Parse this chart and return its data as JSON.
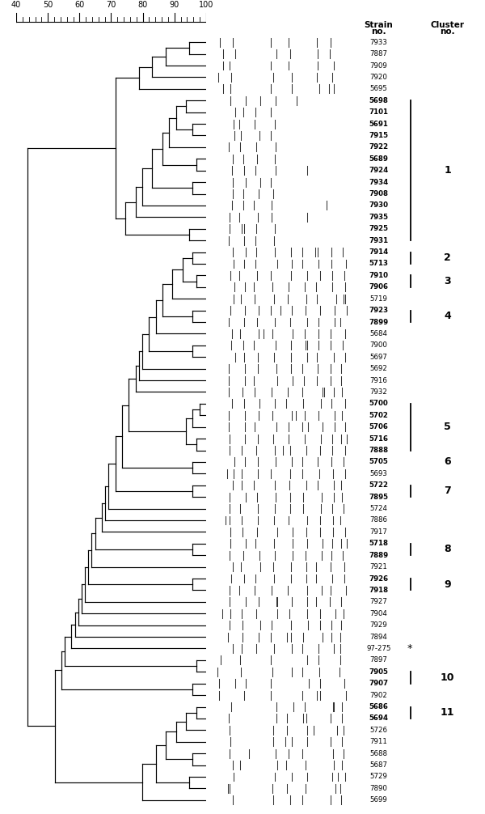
{
  "strains": [
    "7933",
    "7887",
    "7909",
    "7920",
    "5695",
    "5698",
    "7101",
    "5691",
    "7915",
    "7922",
    "5689",
    "7924",
    "7934",
    "7908",
    "7930",
    "7935",
    "7925",
    "7931",
    "7914",
    "5713",
    "7910",
    "7906",
    "5719",
    "7923",
    "7899",
    "5684",
    "7900",
    "5697",
    "5692",
    "7916",
    "7932",
    "5700",
    "5702",
    "5706",
    "5716",
    "7888",
    "5705",
    "5693",
    "5722",
    "7895",
    "5724",
    "7886",
    "7917",
    "5718",
    "7889",
    "7921",
    "7926",
    "7918",
    "7927",
    "7904",
    "7929",
    "7894",
    "97-275",
    "7897",
    "7905",
    "7907",
    "7902",
    "5686",
    "5694",
    "5726",
    "7911",
    "5688",
    "5687",
    "5729",
    "7890",
    "5699"
  ],
  "cluster_brackets": [
    {
      "label": "1",
      "start": 5,
      "end": 17
    },
    {
      "label": "2",
      "start": 18,
      "end": 19
    },
    {
      "label": "3",
      "start": 20,
      "end": 21
    },
    {
      "label": "4",
      "start": 23,
      "end": 24
    },
    {
      "label": "5",
      "start": 31,
      "end": 35
    },
    {
      "label": "6",
      "start": 36,
      "end": 36
    },
    {
      "label": "7",
      "start": 38,
      "end": 39
    },
    {
      "label": "8",
      "start": 43,
      "end": 44
    },
    {
      "label": "9",
      "start": 46,
      "end": 47
    },
    {
      "label": "10",
      "start": 54,
      "end": 55
    },
    {
      "label": "11",
      "start": 57,
      "end": 58
    }
  ],
  "asterisk_strain": "97-275",
  "background_color": "#ffffff",
  "fontsize_strain": 6.2,
  "fontsize_header": 7.5,
  "fontsize_cluster": 9,
  "fontsize_scale": 7
}
